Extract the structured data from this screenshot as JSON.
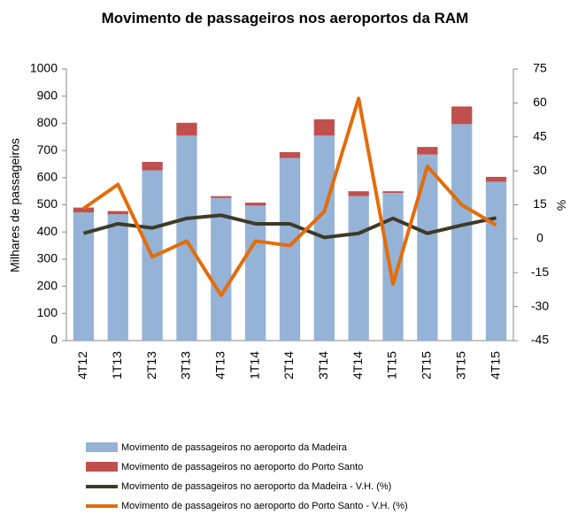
{
  "chart_data": {
    "type": "bar",
    "stacked": true,
    "title": "Movimento de passageiros nos aeroportos da RAM",
    "y_label": "Milhares de passageiros",
    "y2_label": "%",
    "categories": [
      "4T12",
      "1T13",
      "2T13",
      "3T13",
      "4T13",
      "1T14",
      "2T14",
      "3T14",
      "4T14",
      "1T15",
      "2T15",
      "3T15",
      "4T15"
    ],
    "series": [
      {
        "name": "Movimento de passageiros no aeroporto da Madeira",
        "type": "bar",
        "color": "#95b3d7",
        "values": [
          472,
          465,
          627,
          755,
          525,
          497,
          672,
          755,
          532,
          544,
          685,
          797,
          585
        ]
      },
      {
        "name": "Movimento de passageiros no aeroporto do Porto Santo",
        "type": "bar",
        "color": "#c0504d",
        "values": [
          18,
          12,
          31,
          47,
          7,
          11,
          22,
          60,
          18,
          6,
          28,
          65,
          18
        ]
      },
      {
        "name": "Movimento de passageiros no aeroporto da Madeira  - V.H. (%)",
        "type": "line",
        "axis": "y2",
        "color": "#3d3a27",
        "values": [
          2.4,
          6.6,
          4.8,
          9,
          10.4,
          6.6,
          6.6,
          0.6,
          2.4,
          9,
          2.4,
          6,
          9.2
        ]
      },
      {
        "name": "Movimento de passageiros no aeroporto do Porto Santo  - V.H. (%)",
        "type": "line",
        "axis": "y2",
        "color": "#e46c0a",
        "values": [
          13.4,
          24,
          -8,
          -1,
          -25,
          -1,
          -3,
          12,
          62,
          -20,
          32,
          15,
          6
        ]
      }
    ],
    "ylim": [
      0,
      1000
    ],
    "yticks": [
      0,
      100,
      200,
      300,
      400,
      500,
      600,
      700,
      800,
      900,
      1000
    ],
    "y2lim": [
      -45,
      75
    ],
    "y2ticks": [
      -45,
      -30,
      -15,
      0,
      15,
      30,
      45,
      60,
      75
    ],
    "grid": false,
    "legend": "bottom"
  }
}
